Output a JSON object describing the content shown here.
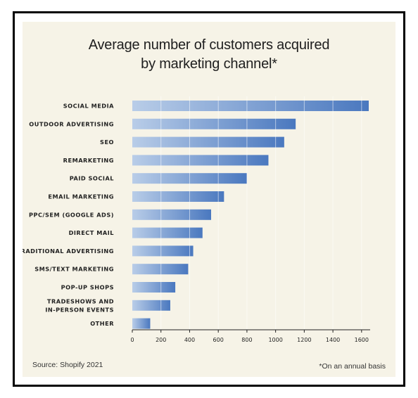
{
  "chart_data": {
    "type": "bar",
    "orientation": "horizontal",
    "title": "Average number of customers acquired by marketing channel*",
    "title_lines": [
      "Average number of customers acquired",
      "by marketing channel*"
    ],
    "categories": [
      [
        "SOCIAL MEDIA"
      ],
      [
        "OUTDOOR ADVERTISING"
      ],
      [
        "SEO"
      ],
      [
        "REMARKETING"
      ],
      [
        "PAID SOCIAL"
      ],
      [
        "EMAIL MARKETING"
      ],
      [
        "PPC/SEM (GOOGLE ADS)"
      ],
      [
        "DIRECT MAIL"
      ],
      [
        "TRADITIONAL ADVERTISING"
      ],
      [
        "SMS/TEXT MARKETING"
      ],
      [
        "POP-UP SHOPS"
      ],
      [
        "TRADESHOWS AND",
        "IN-PERSON EVENTS"
      ],
      [
        "OTHER"
      ]
    ],
    "values": [
      1650,
      1140,
      1060,
      950,
      800,
      640,
      550,
      490,
      425,
      390,
      300,
      265,
      125
    ],
    "xlim": [
      0,
      1650
    ],
    "xticks": [
      0,
      200,
      400,
      600,
      800,
      1000,
      1200,
      1400,
      1600
    ],
    "grid": true,
    "bar_color_start": "#b9cde8",
    "bar_color_end": "#4a78bf",
    "gridline_color": "#ffffff",
    "axis_color": "#222222"
  },
  "source": "Source: Shopify 2021",
  "footnote": "*On an annual basis",
  "colors": {
    "panel_background": "#f6f3e7",
    "frame_border": "#000000",
    "text": "#1e1e1e"
  }
}
